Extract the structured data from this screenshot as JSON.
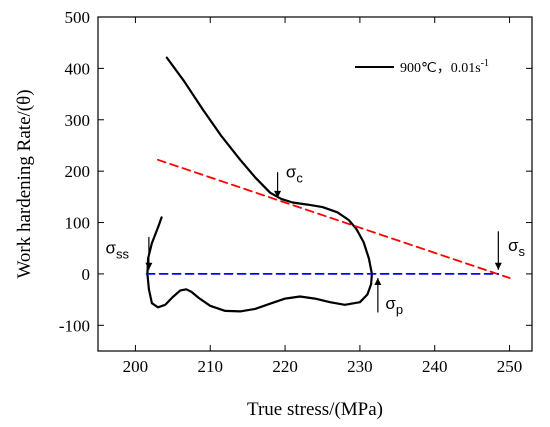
{
  "chart_data": {
    "type": "line",
    "xlabel": "True stress/(MPa)",
    "ylabel": "Work hardening Rate/(θ)",
    "xlim": [
      195,
      253
    ],
    "ylim": [
      -150,
      500
    ],
    "xticks": [
      200,
      210,
      220,
      230,
      240,
      250
    ],
    "yticks": [
      -100,
      0,
      100,
      200,
      300,
      400,
      500
    ],
    "legend_position": "top-right",
    "series": [
      {
        "name": "900℃，0.01s-1",
        "style": "solid",
        "color": "#000000",
        "x": [
          204.2,
          206.5,
          209.0,
          211.5,
          214.0,
          216.0,
          218.0,
          219.5,
          221.0,
          223.0,
          225.0,
          227.0,
          228.5,
          229.5,
          230.5,
          231.2,
          231.6,
          231.5,
          231.0,
          230.0,
          228.0,
          226.0,
          224.0,
          222.0,
          220.0,
          218.0,
          216.0,
          214.0,
          212.0,
          210.0,
          208.5,
          207.5,
          206.8,
          206.0,
          205.0,
          204.0,
          203.0,
          202.2,
          201.8,
          201.6,
          201.7,
          202.2,
          203.0,
          203.5
        ],
        "y": [
          421,
          375,
          320,
          268,
          222,
          188,
          158,
          146,
          139,
          135,
          130,
          120,
          105,
          88,
          62,
          30,
          0,
          -20,
          -40,
          -55,
          -60,
          -55,
          -48,
          -44,
          -48,
          -58,
          -68,
          -73,
          -72,
          -62,
          -47,
          -35,
          -30,
          -32,
          -45,
          -60,
          -65,
          -57,
          -30,
          0,
          30,
          60,
          90,
          110
        ]
      },
      {
        "name": "",
        "style": "dashed",
        "color": "#ff0000",
        "x": [
          203,
          250
        ],
        "y": [
          222,
          -8
        ]
      },
      {
        "name": "",
        "style": "dashed",
        "color": "#0000ff",
        "x": [
          201.5,
          248.5
        ],
        "y": [
          0,
          0
        ]
      }
    ],
    "annotations": [
      {
        "text": "σ",
        "sub": "c",
        "arrow_x": 219.0,
        "arrow_from": 198,
        "arrow_to": 148,
        "label_x": 220.1,
        "label_y": 188
      },
      {
        "text": "σ",
        "sub": "ss",
        "arrow_x": 201.8,
        "arrow_from": 72,
        "arrow_to": 8,
        "label_x": 196.0,
        "label_y": 40
      },
      {
        "text": "σ",
        "sub": "s",
        "arrow_x": 248.5,
        "arrow_from": 83,
        "arrow_to": 8,
        "label_x": 249.8,
        "label_y": 45
      },
      {
        "text": "σ",
        "sub": "p",
        "arrow_x": 232.4,
        "arrow_from": -75,
        "arrow_to": -8,
        "label_x": 233.4,
        "label_y": -68
      }
    ]
  }
}
